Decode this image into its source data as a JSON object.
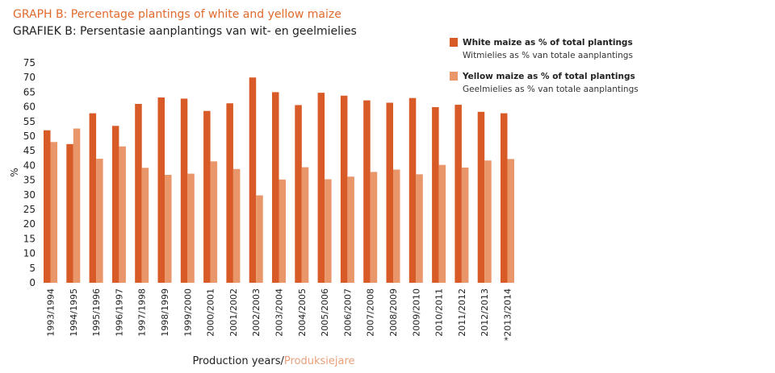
{
  "colors": {
    "white_maize": "#d85a26",
    "yellow_maize": "#e8966a",
    "title": "#e06a2c",
    "alt_text": "#e8a07a"
  },
  "header": {
    "title": "GRAPH B: Percentage plantings of white and yellow maize",
    "subtitle": "GRAFIEK B: Persentasie aanplantings van wit- en geelmielies"
  },
  "legend": [
    {
      "name": "White maize as % of total plantings",
      "sub": "Witmielies as % van totale aanplantings"
    },
    {
      "name": "Yellow maize as % of total plantings",
      "sub": "Geelmielies as % van totale aanplantings"
    }
  ],
  "axis": {
    "xlabel_main": "Production years/",
    "xlabel_alt": "Produksiejare"
  },
  "chart_data": {
    "type": "bar",
    "title": "GRAPH B: Percentage plantings of white and yellow maize",
    "subtitle": "GRAFIEK B: Persentasie aanplantings van wit- en geelmielies",
    "xlabel": "Production years/Produksiejare",
    "ylabel": "%",
    "ylim": [
      0,
      75
    ],
    "yticks": [
      0,
      5,
      10,
      15,
      20,
      25,
      30,
      35,
      40,
      45,
      50,
      55,
      60,
      65,
      70,
      75
    ],
    "grid": false,
    "legend_position": "top-right",
    "categories": [
      "1993/1994",
      "1994/1995",
      "1995/1996",
      "1996/1997",
      "1997/1998",
      "1998/1999",
      "1999/2000",
      "2000/2001",
      "2001/2002",
      "2002/2003",
      "2003/2004",
      "2004/2005",
      "2005/2006",
      "2006/2007",
      "2007/2008",
      "2008/2009",
      "2009/2010",
      "2010/2011",
      "2011/2012",
      "2012/2013",
      "*2013/2014"
    ],
    "series": [
      {
        "name": "White maize as % of total plantings",
        "color": "#d85a26",
        "values": [
          52,
          47.3,
          57.8,
          53.5,
          61,
          63.2,
          62.8,
          58.6,
          61.2,
          70,
          65,
          60.6,
          64.8,
          63.8,
          62.2,
          61.4,
          63,
          59.9,
          60.7,
          58.3,
          57.8
        ]
      },
      {
        "name": "Yellow maize as % of total plantings",
        "color": "#e8966a",
        "values": [
          48,
          52.6,
          42.3,
          46.5,
          39.2,
          36.8,
          37.2,
          41.4,
          38.8,
          29.8,
          35.2,
          39.4,
          35.3,
          36.2,
          37.8,
          38.6,
          37,
          40.2,
          39.3,
          41.7,
          42.2
        ]
      }
    ]
  }
}
